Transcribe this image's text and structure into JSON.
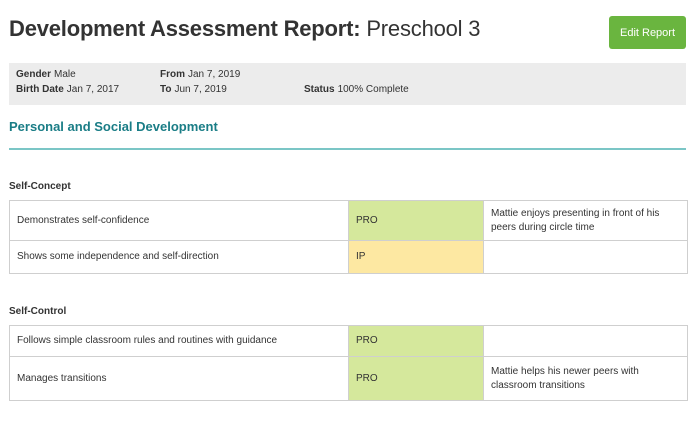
{
  "header": {
    "title_bold": "Development Assessment Report:",
    "title_rest": "Preschool 3",
    "edit_button": "Edit Report"
  },
  "info": {
    "gender_label": "Gender",
    "gender_value": "Male",
    "birth_label": "Birth Date",
    "birth_value": "Jan 7, 2017",
    "from_label": "From",
    "from_value": "Jan 7, 2019",
    "to_label": "To",
    "to_value": "Jun 7, 2019",
    "status_label": "Status",
    "status_value": "100% Complete"
  },
  "section": {
    "title": "Personal and Social Development",
    "groups": [
      {
        "title": "Self-Concept",
        "rows": [
          {
            "skill": "Demonstrates self-confidence",
            "level": "PRO",
            "comment": "Mattie enjoys presenting in front of his peers during circle time"
          },
          {
            "skill": "Shows some independence and self-direction",
            "level": "IP",
            "comment": ""
          }
        ]
      },
      {
        "title": "Self-Control",
        "rows": [
          {
            "skill": "Follows simple classroom rules and routines with guidance",
            "level": "PRO",
            "comment": ""
          },
          {
            "skill": "Manages transitions",
            "level": "PRO",
            "comment": "Mattie helps his newer peers with classroom transitions"
          }
        ]
      }
    ]
  },
  "colors": {
    "accent": "#1a7d86",
    "button": "#6ab53f",
    "pro": "#d5e89c",
    "ip": "#fde8a2"
  }
}
